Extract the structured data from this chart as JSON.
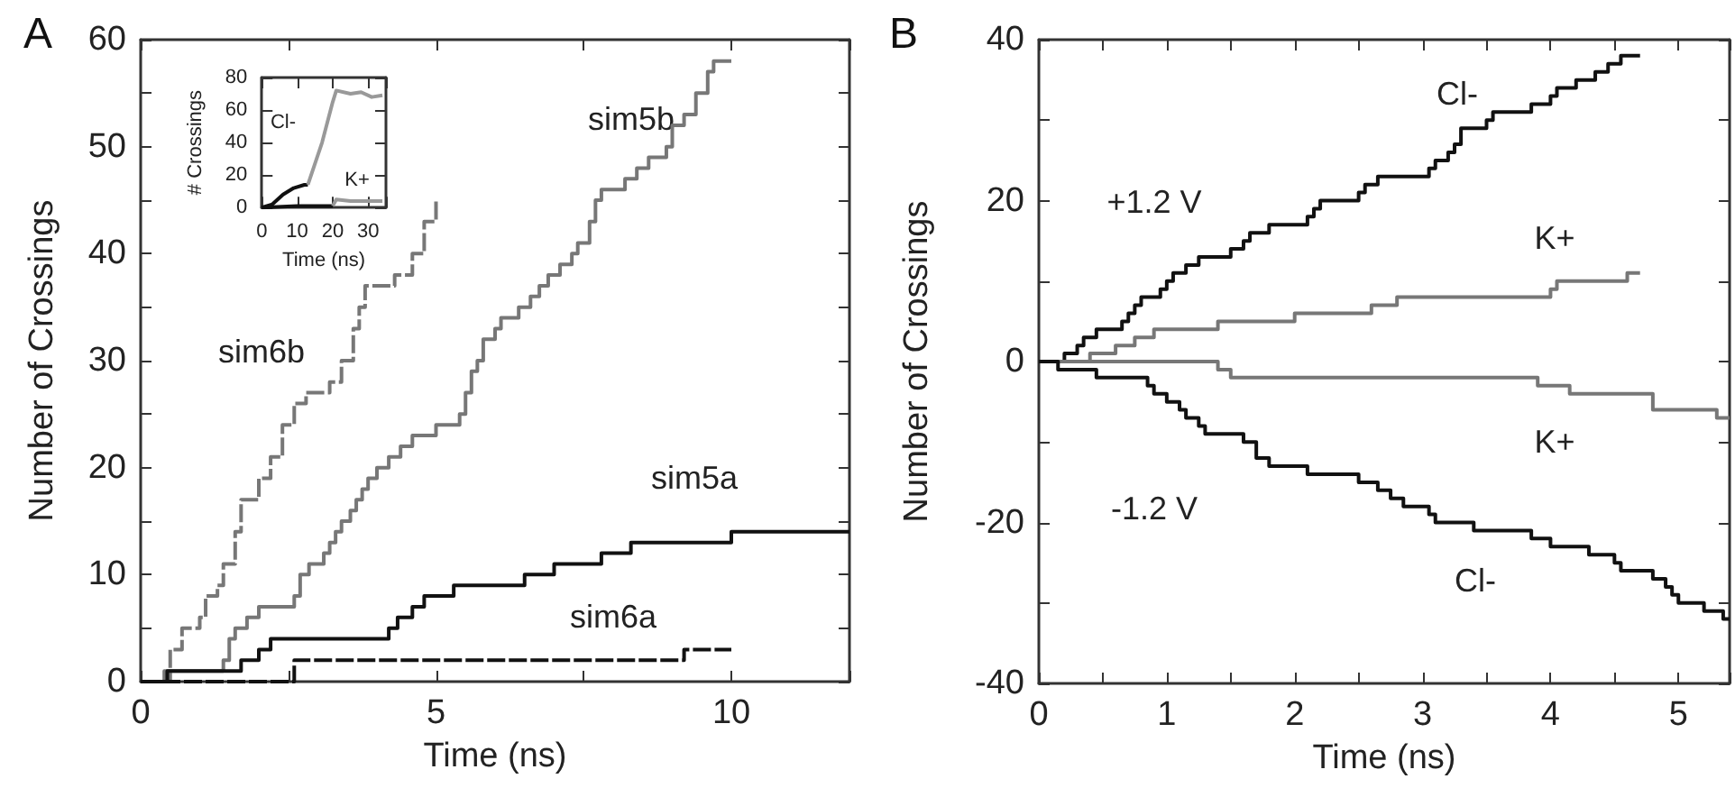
{
  "chart_data": [
    {
      "type": "step",
      "title": "A",
      "xlabel": "Time (ns)",
      "ylabel": "Number of Crossings",
      "xlim": [
        0,
        12
      ],
      "xticks": [
        0,
        {
          "value": 2.5,
          "label": null
        },
        5,
        {
          "value": 7.5,
          "label": null
        },
        10
      ],
      "ylim": [
        0,
        60
      ],
      "yticks": [
        0,
        {
          "value": 5,
          "label": null
        },
        10,
        {
          "value": 15,
          "label": null
        },
        20,
        {
          "value": 25,
          "label": null
        },
        30,
        {
          "value": 35,
          "label": null
        },
        40,
        {
          "value": 45,
          "label": null
        },
        50,
        {
          "value": 55,
          "label": null
        },
        60
      ],
      "series": [
        {
          "color": "#777777",
          "line_style": "dashed",
          "x": [
            0,
            0.4,
            0.5,
            0.7,
            1.0,
            1.1,
            1.3,
            1.4,
            1.6,
            1.7,
            2.0,
            2.2,
            2.4,
            2.6,
            2.8,
            3.2,
            3.4,
            3.6,
            3.7,
            3.8,
            4.3,
            4.6,
            4.8,
            5.0
          ],
          "values": [
            0,
            1,
            3,
            5,
            6,
            8,
            9,
            11,
            14,
            17,
            19,
            21,
            24,
            26,
            27,
            28,
            30,
            33,
            35,
            37,
            38,
            40,
            43,
            45
          ]
        },
        {
          "color": "#777777",
          "line_style": "solid",
          "x": [
            0,
            0.5,
            1.4,
            1.5,
            1.6,
            1.8,
            2.0,
            2.6,
            2.7,
            2.85,
            3.1,
            3.2,
            3.3,
            3.4,
            3.55,
            3.65,
            3.75,
            3.85,
            4.0,
            4.2,
            4.4,
            4.6,
            5.0,
            5.4,
            5.5,
            5.6,
            5.7,
            5.8,
            6.0,
            6.1,
            6.4,
            6.6,
            6.75,
            6.9,
            7.1,
            7.3,
            7.4,
            7.6,
            7.7,
            7.8,
            8.2,
            8.4,
            8.6,
            8.9,
            9.0,
            9.2,
            9.4,
            9.6,
            9.7,
            10
          ],
          "values": [
            0,
            1,
            2,
            4,
            5,
            6,
            7,
            8,
            10,
            11,
            12,
            13,
            14,
            15,
            16,
            17,
            18,
            19,
            20,
            21,
            22,
            23,
            24,
            25,
            27,
            29,
            30,
            32,
            33,
            34,
            35,
            36,
            37,
            38,
            39,
            40,
            41,
            43,
            45,
            46,
            47,
            48,
            49,
            50,
            52,
            53,
            55,
            57,
            58,
            58
          ]
        },
        {
          "color": "#111111",
          "line_style": "solid",
          "x": [
            0,
            0.45,
            1.7,
            2.0,
            2.2,
            4.2,
            4.35,
            4.6,
            4.8,
            5.3,
            6.5,
            7.0,
            7.8,
            8.3,
            10.0,
            12
          ],
          "values": [
            0,
            1,
            2,
            3,
            4,
            5,
            6,
            7,
            8,
            9,
            10,
            11,
            12,
            13,
            14,
            14
          ]
        },
        {
          "color": "#111111",
          "line_style": "dashed",
          "x": [
            0,
            2.6,
            9.2,
            10
          ],
          "values": [
            0,
            2,
            3,
            3
          ]
        }
      ],
      "annotations": [
        "sim6b",
        "sim5b",
        "sim5a",
        "sim6a"
      ]
    },
    {
      "type": "line",
      "xlabel": "Time (ns)",
      "ylabel": "# Crossings",
      "xlim": [
        0,
        35
      ],
      "xticks": [
        0,
        10,
        20,
        30
      ],
      "ylim": [
        0,
        80
      ],
      "yticks": [
        0,
        20,
        40,
        60,
        80
      ],
      "series": [
        {
          "color": "#111111",
          "x": [
            0,
            3,
            6,
            9,
            12,
            13
          ],
          "values": [
            0,
            2,
            8,
            12,
            14,
            14
          ]
        },
        {
          "color": "#999999",
          "x": [
            13,
            17,
            20,
            21,
            25,
            28,
            31,
            34
          ],
          "values": [
            14,
            40,
            65,
            72,
            70,
            71,
            68,
            69
          ]
        },
        {
          "color": "#111111",
          "x": [
            0,
            10,
            20
          ],
          "values": [
            0,
            1,
            1
          ]
        },
        {
          "color": "#999999",
          "x": [
            20,
            21,
            25,
            34
          ],
          "values": [
            1,
            5,
            4,
            4
          ]
        }
      ],
      "annotations": [
        "Cl-",
        "K+"
      ]
    },
    {
      "type": "step",
      "title": "B",
      "xlabel": "Time (ns)",
      "ylabel": "Number of Crossings",
      "xlim": [
        0,
        5.4
      ],
      "xticks": [
        0,
        {
          "value": 0.5,
          "label": null
        },
        1,
        {
          "value": 1.5,
          "label": null
        },
        2,
        {
          "value": 2.5,
          "label": null
        },
        3,
        {
          "value": 3.5,
          "label": null
        },
        4,
        {
          "value": 4.5,
          "label": null
        },
        5
      ],
      "ylim": [
        -40,
        40
      ],
      "yticks": [
        -40,
        {
          "value": -30,
          "label": null
        },
        -20,
        {
          "value": -10,
          "label": null
        },
        0,
        {
          "value": 10,
          "label": null
        },
        20,
        {
          "value": 30,
          "label": null
        },
        40
      ],
      "series": [
        {
          "color": "#111111",
          "x": [
            0,
            0.2,
            0.3,
            0.35,
            0.45,
            0.65,
            0.7,
            0.75,
            0.8,
            0.95,
            1.0,
            1.05,
            1.15,
            1.25,
            1.5,
            1.6,
            1.65,
            1.8,
            2.1,
            2.15,
            2.2,
            2.5,
            2.55,
            2.65,
            3.05,
            3.1,
            3.2,
            3.25,
            3.3,
            3.5,
            3.55,
            3.85,
            4.0,
            4.05,
            4.2,
            4.35,
            4.45,
            4.55,
            4.7
          ],
          "values": [
            0,
            1,
            2,
            3,
            4,
            5,
            6,
            7,
            8,
            9,
            10,
            11,
            12,
            13,
            14,
            15,
            16,
            17,
            18,
            19,
            20,
            21,
            22,
            23,
            24,
            25,
            26,
            27,
            29,
            30,
            31,
            32,
            33,
            34,
            35,
            36,
            37,
            38,
            38
          ]
        },
        {
          "color": "#777777",
          "x": [
            0,
            0.4,
            0.6,
            0.75,
            0.9,
            1.4,
            2.0,
            2.6,
            2.8,
            4.0,
            4.05,
            4.6,
            4.7
          ],
          "values": [
            0,
            1,
            2,
            3,
            4,
            5,
            6,
            7,
            8,
            9,
            10,
            11,
            11
          ]
        },
        {
          "color": "#777777",
          "x": [
            0,
            1.4,
            1.5,
            3.9,
            4.15,
            4.8,
            5.3,
            5.4
          ],
          "values": [
            0,
            -1,
            -2,
            -3,
            -4,
            -6,
            -7,
            -7
          ]
        },
        {
          "color": "#111111",
          "x": [
            0,
            0.15,
            0.45,
            0.85,
            0.9,
            1.0,
            1.1,
            1.15,
            1.25,
            1.3,
            1.6,
            1.7,
            1.8,
            2.1,
            2.5,
            2.65,
            2.75,
            2.85,
            3.05,
            3.1,
            3.4,
            3.85,
            4.0,
            4.3,
            4.5,
            4.55,
            4.8,
            4.9,
            4.95,
            5.0,
            5.2,
            5.35,
            5.4
          ],
          "values": [
            0,
            -1,
            -2,
            -3,
            -4,
            -5,
            -6,
            -7,
            -8,
            -9,
            -10,
            -12,
            -13,
            -14,
            -15,
            -16,
            -17,
            -18,
            -19,
            -20,
            -21,
            -22,
            -23,
            -24,
            -25,
            -26,
            -27,
            -28,
            -29,
            -30,
            -31,
            -32,
            -32
          ]
        }
      ],
      "annotations": [
        "Cl-",
        "+1.2 V",
        "K+",
        "K+",
        "-1.2 V",
        "Cl-"
      ]
    }
  ]
}
